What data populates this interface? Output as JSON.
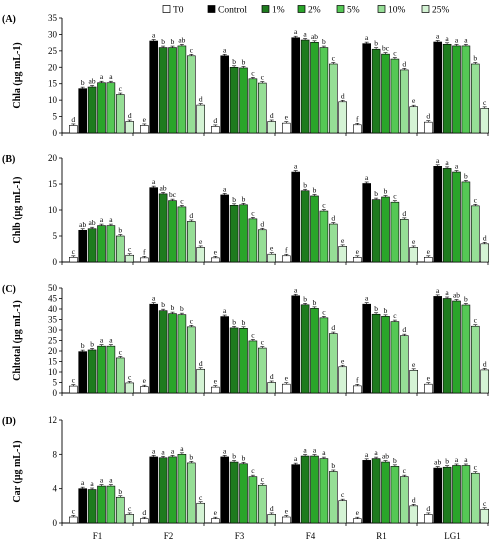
{
  "legend": {
    "entries": [
      "T0",
      "Control",
      "1%",
      "2%",
      "5%",
      "10%",
      "25%"
    ],
    "colors": [
      "#ffffff",
      "#000000",
      "#1e7b1e",
      "#2aa52a",
      "#55c855",
      "#96de96",
      "#d4f3d4"
    ]
  },
  "chart_data": [
    {
      "type": "bar",
      "panel_label": "(A)",
      "ylabel": "Chla (µg mL-1)",
      "ylim": [
        0,
        35
      ],
      "yticks": [
        0,
        5,
        10,
        15,
        20,
        25,
        30,
        35
      ],
      "categories": [
        "F1",
        "F2",
        "F3",
        "F4",
        "R1",
        "LG1"
      ],
      "series": [
        {
          "name": "T0",
          "values": [
            2.3,
            2.3,
            2.0,
            3.0,
            2.5,
            3.3
          ],
          "letters": [
            "d",
            "e",
            "d",
            "e",
            "f",
            "d"
          ]
        },
        {
          "name": "Control",
          "values": [
            13.5,
            28.0,
            23.5,
            29.0,
            27.2,
            27.7
          ],
          "letters": [
            "b",
            "a",
            "a",
            "a",
            "a",
            "a"
          ]
        },
        {
          "name": "1%",
          "values": [
            14.0,
            26.0,
            20.0,
            28.3,
            25.5,
            27.0
          ],
          "letters": [
            "ab",
            "b",
            "b",
            "a",
            "b",
            "a"
          ]
        },
        {
          "name": "2%",
          "values": [
            15.3,
            26.0,
            19.8,
            27.6,
            24.0,
            26.5
          ],
          "letters": [
            "a",
            "b",
            "b",
            "ab",
            "bc",
            "a"
          ]
        },
        {
          "name": "5%",
          "values": [
            15.3,
            26.5,
            16.5,
            26.0,
            22.5,
            26.5
          ],
          "letters": [
            "a",
            "ab",
            "c",
            "b",
            "c",
            "a"
          ]
        },
        {
          "name": "10%",
          "values": [
            11.7,
            23.5,
            15.2,
            21.0,
            19.2,
            21.0
          ],
          "letters": [
            "c",
            "c",
            "c",
            "c",
            "d",
            "b"
          ]
        },
        {
          "name": "25%",
          "values": [
            3.5,
            8.5,
            3.5,
            9.5,
            8.0,
            7.5
          ],
          "letters": [
            "d",
            "d",
            "d",
            "d",
            "e",
            "c"
          ]
        }
      ]
    },
    {
      "type": "bar",
      "panel_label": "(B)",
      "ylabel": "Chlb (µg mL-1)",
      "ylim": [
        0,
        20
      ],
      "yticks": [
        0,
        5,
        10,
        15,
        20
      ],
      "categories": [
        "F1",
        "F2",
        "F3",
        "F4",
        "R1",
        "LG1"
      ],
      "series": [
        {
          "name": "T0",
          "values": [
            0.9,
            0.8,
            0.8,
            1.2,
            0.9,
            0.9
          ],
          "letters": [
            "c",
            "f",
            "e",
            "f",
            "e",
            "e"
          ]
        },
        {
          "name": "Control",
          "values": [
            6.1,
            14.3,
            12.9,
            17.3,
            15.1,
            18.4
          ],
          "letters": [
            "ab",
            "a",
            "a",
            "a",
            "a",
            "a"
          ]
        },
        {
          "name": "1%",
          "values": [
            6.4,
            13.1,
            10.9,
            13.7,
            12.0,
            18.0
          ],
          "letters": [
            "ab",
            "ab",
            "b",
            "b",
            "b",
            "a"
          ]
        },
        {
          "name": "2%",
          "values": [
            7.0,
            11.8,
            11.0,
            12.7,
            12.5,
            17.3
          ],
          "letters": [
            "a",
            "bc",
            "b",
            "b",
            "b",
            "a"
          ]
        },
        {
          "name": "5%",
          "values": [
            7.0,
            10.6,
            8.3,
            9.8,
            11.5,
            15.4
          ],
          "letters": [
            "a",
            "c",
            "c",
            "c",
            "c",
            "b"
          ]
        },
        {
          "name": "10%",
          "values": [
            5.0,
            7.8,
            6.2,
            7.3,
            8.2,
            10.8
          ],
          "letters": [
            "b",
            "d",
            "d",
            "d",
            "d",
            "c"
          ]
        },
        {
          "name": "25%",
          "values": [
            1.3,
            2.8,
            1.5,
            3.0,
            2.8,
            3.5
          ],
          "letters": [
            "c",
            "e",
            "e",
            "e",
            "e",
            "d"
          ]
        }
      ]
    },
    {
      "type": "bar",
      "panel_label": "(C)",
      "ylabel": "Chltotal (µg mL-1)",
      "ylim": [
        0,
        50
      ],
      "yticks": [
        0,
        5,
        10,
        15,
        20,
        25,
        30,
        35,
        40,
        45,
        50
      ],
      "categories": [
        "F1",
        "F2",
        "F3",
        "F4",
        "R1",
        "LG1"
      ],
      "series": [
        {
          "name": "T0",
          "values": [
            3.3,
            3.0,
            2.8,
            4.2,
            3.4,
            4.2
          ],
          "letters": [
            "c",
            "e",
            "e",
            "e",
            "f",
            "e"
          ]
        },
        {
          "name": "Control",
          "values": [
            19.7,
            42.3,
            36.4,
            46.3,
            42.3,
            46.0
          ],
          "letters": [
            "b",
            "a",
            "a",
            "a",
            "a",
            "a"
          ]
        },
        {
          "name": "1%",
          "values": [
            20.5,
            39.2,
            31.0,
            42.0,
            37.5,
            45.0
          ],
          "letters": [
            "b",
            "b",
            "b",
            "b",
            "b",
            "a"
          ]
        },
        {
          "name": "2%",
          "values": [
            22.3,
            37.8,
            30.8,
            40.3,
            36.5,
            43.8
          ],
          "letters": [
            "a",
            "b",
            "b",
            "b",
            "b",
            "ab"
          ]
        },
        {
          "name": "5%",
          "values": [
            22.3,
            37.3,
            24.8,
            35.8,
            34.0,
            41.9
          ],
          "letters": [
            "a",
            "b",
            "c",
            "c",
            "c",
            "b"
          ]
        },
        {
          "name": "10%",
          "values": [
            16.7,
            31.5,
            21.4,
            28.3,
            27.3,
            31.8
          ],
          "letters": [
            "c",
            "c",
            "c",
            "d",
            "d",
            "c"
          ]
        },
        {
          "name": "25%",
          "values": [
            4.8,
            11.3,
            5.0,
            12.5,
            10.8,
            11.0
          ],
          "letters": [
            "c",
            "d",
            "d",
            "e",
            "e",
            "d"
          ]
        }
      ]
    },
    {
      "type": "bar",
      "panel_label": "(D)",
      "ylabel": "Car (µg mL-1)",
      "ylim": [
        0,
        12
      ],
      "yticks": [
        0,
        4,
        8,
        12
      ],
      "categories": [
        "F1",
        "F2",
        "F3",
        "F4",
        "R1",
        "LG1"
      ],
      "series": [
        {
          "name": "T0",
          "values": [
            0.7,
            0.5,
            0.5,
            0.7,
            0.5,
            1.0
          ],
          "letters": [
            "c",
            "d",
            "e",
            "e",
            "e",
            "d"
          ]
        },
        {
          "name": "Control",
          "values": [
            4.0,
            7.7,
            7.7,
            6.8,
            7.3,
            6.4
          ],
          "letters": [
            "a",
            "a",
            "a",
            "a",
            "a",
            "ab"
          ]
        },
        {
          "name": "1%",
          "values": [
            3.9,
            7.6,
            7.1,
            7.8,
            7.5,
            6.5
          ],
          "letters": [
            "a",
            "a",
            "b",
            "a",
            "a",
            "b"
          ]
        },
        {
          "name": "2%",
          "values": [
            4.3,
            7.7,
            6.9,
            7.8,
            7.1,
            6.7
          ],
          "letters": [
            "a",
            "a",
            "b",
            "a",
            "ab",
            "a"
          ]
        },
        {
          "name": "5%",
          "values": [
            4.3,
            8.0,
            5.4,
            7.5,
            6.6,
            6.7
          ],
          "letters": [
            "a",
            "a",
            "c",
            "a",
            "b",
            "a"
          ]
        },
        {
          "name": "10%",
          "values": [
            3.0,
            7.0,
            4.4,
            6.0,
            5.4,
            5.8
          ],
          "letters": [
            "b",
            "b",
            "c",
            "b",
            "c",
            "c"
          ]
        },
        {
          "name": "25%",
          "values": [
            1.0,
            2.3,
            1.0,
            2.6,
            2.0,
            1.6
          ],
          "letters": [
            "c",
            "c",
            "d",
            "c",
            "d",
            "c"
          ]
        }
      ]
    }
  ]
}
